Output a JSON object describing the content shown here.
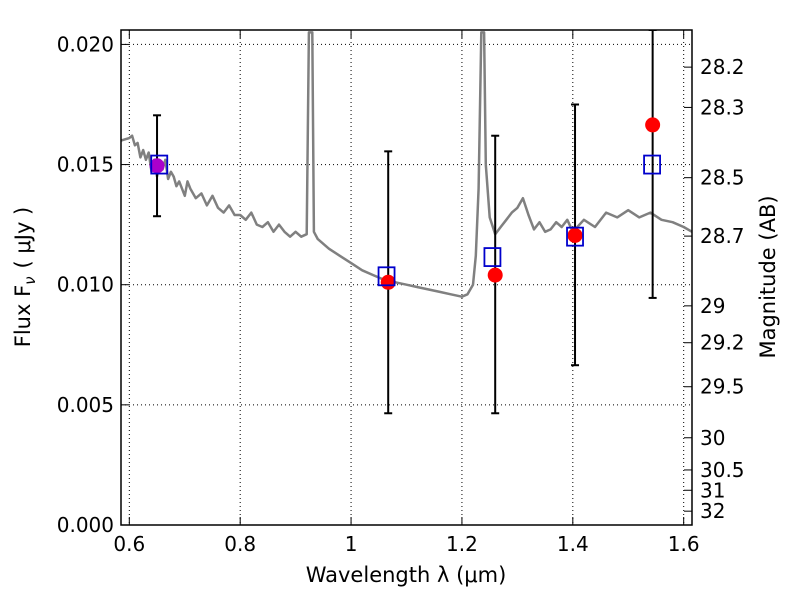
{
  "chart_data": {
    "type": "scatter",
    "xlabel": "Wavelength  λ (μm)",
    "ylabel": "Flux  F",
    "ylabel_sub": "ν",
    "ylabel_unit": "( μJy )",
    "ylabel_right": "Magnitude (AB)",
    "xlim": [
      0.585,
      1.615
    ],
    "ylim": [
      0.0,
      0.0206
    ],
    "grid": true,
    "x_ticks": [
      0.6,
      0.8,
      1.0,
      1.2,
      1.4,
      1.6
    ],
    "x_tick_labels": [
      "0.6",
      "0.8",
      "1",
      "1.2",
      "1.4",
      "1.6"
    ],
    "y_ticks": [
      0.0,
      0.005,
      0.01,
      0.015,
      0.02
    ],
    "y_tick_labels": [
      "0.000",
      "0.005",
      "0.010",
      "0.015",
      "0.020"
    ],
    "right_ticks": [
      {
        "label": "28.2",
        "mag": 28.2
      },
      {
        "label": "28.3",
        "mag": 28.3
      },
      {
        "label": "28.5",
        "mag": 28.5
      },
      {
        "label": "28.7",
        "mag": 28.7
      },
      {
        "label": "29",
        "mag": 29.0
      },
      {
        "label": "29.2",
        "mag": 29.2
      },
      {
        "label": "29.5",
        "mag": 29.5
      },
      {
        "label": "30",
        "mag": 30.0
      },
      {
        "label": "30.5",
        "mag": 30.5
      },
      {
        "label": "31",
        "mag": 31.0
      },
      {
        "label": "32",
        "mag": 32.0
      }
    ],
    "colors": {
      "observed": "#ff0000",
      "observed_first": "#aa00cc",
      "model_box": "#0000cc",
      "sed": "#808080",
      "errorbar": "#000000",
      "grid": "#000000"
    },
    "series": [
      {
        "kind": "observed",
        "x": [
          0.65,
          1.067,
          1.26,
          1.404,
          1.544
        ],
        "y": [
          0.01495,
          0.0101,
          0.0104,
          0.01205,
          0.01665
        ],
        "yerr_low": [
          0.01285,
          0.00465,
          0.00465,
          0.00665,
          0.00945
        ],
        "yerr_high": [
          0.01705,
          0.01555,
          0.0162,
          0.0175,
          0.0206
        ]
      },
      {
        "kind": "model",
        "x": [
          0.654,
          1.064,
          1.255,
          1.404,
          1.543
        ],
        "y": [
          0.015,
          0.01035,
          0.01115,
          0.012,
          0.015
        ]
      },
      {
        "kind": "sed",
        "x": [
          0.585,
          0.6,
          0.605,
          0.61,
          0.615,
          0.62,
          0.625,
          0.63,
          0.635,
          0.64,
          0.645,
          0.65,
          0.655,
          0.66,
          0.665,
          0.67,
          0.675,
          0.68,
          0.685,
          0.69,
          0.7,
          0.705,
          0.71,
          0.72,
          0.73,
          0.74,
          0.75,
          0.76,
          0.77,
          0.78,
          0.79,
          0.8,
          0.81,
          0.82,
          0.83,
          0.84,
          0.85,
          0.86,
          0.87,
          0.88,
          0.89,
          0.9,
          0.91,
          0.92,
          0.924,
          0.927,
          0.93,
          0.933,
          0.94,
          0.96,
          0.98,
          1.0,
          1.02,
          1.04,
          1.06,
          1.08,
          1.1,
          1.12,
          1.14,
          1.16,
          1.18,
          1.2,
          1.21,
          1.22,
          1.225,
          1.23,
          1.235,
          1.238,
          1.24,
          1.243,
          1.25,
          1.26,
          1.27,
          1.28,
          1.29,
          1.3,
          1.31,
          1.32,
          1.33,
          1.34,
          1.35,
          1.36,
          1.37,
          1.38,
          1.39,
          1.4,
          1.42,
          1.44,
          1.46,
          1.48,
          1.5,
          1.52,
          1.54,
          1.56,
          1.58,
          1.6,
          1.615
        ],
        "y": [
          0.016,
          0.0161,
          0.0162,
          0.0158,
          0.0159,
          0.0153,
          0.0156,
          0.0152,
          0.0155,
          0.0147,
          0.0152,
          0.0145,
          0.015,
          0.0148,
          0.0152,
          0.0144,
          0.0147,
          0.0145,
          0.0141,
          0.0143,
          0.0137,
          0.0143,
          0.014,
          0.0136,
          0.0138,
          0.0133,
          0.0137,
          0.0132,
          0.013,
          0.0133,
          0.0129,
          0.0129,
          0.0127,
          0.013,
          0.0125,
          0.0124,
          0.0126,
          0.0122,
          0.0125,
          0.0122,
          0.012,
          0.0122,
          0.012,
          0.0121,
          0.0205,
          0.0205,
          0.0205,
          0.0122,
          0.0119,
          0.0115,
          0.0112,
          0.0109,
          0.0106,
          0.0104,
          0.0102,
          0.0101,
          0.01,
          0.0099,
          0.0098,
          0.0097,
          0.0096,
          0.0095,
          0.0096,
          0.01,
          0.0112,
          0.014,
          0.0205,
          0.0205,
          0.0205,
          0.015,
          0.0128,
          0.0121,
          0.0124,
          0.0127,
          0.013,
          0.0132,
          0.0136,
          0.0129,
          0.0123,
          0.0126,
          0.0122,
          0.0123,
          0.0126,
          0.0124,
          0.0127,
          0.0122,
          0.0127,
          0.0124,
          0.013,
          0.0128,
          0.0131,
          0.0128,
          0.013,
          0.0127,
          0.0126,
          0.0124,
          0.0122
        ]
      }
    ]
  }
}
